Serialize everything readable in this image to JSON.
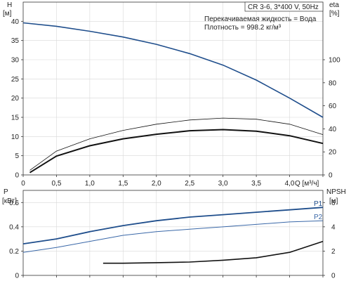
{
  "info_box": {
    "title": "CR 3-6, 3*400 V, 50Hz",
    "line1": "Перекачиваемая жидкость = Вода",
    "line2": "Плотность = 998.2 кг/м³"
  },
  "colors": {
    "head": "#1f4e8c",
    "p1": "#1f4e8c",
    "p2": "#3a68a8",
    "npsh": "#111111",
    "eta": "#111111",
    "grid": "#d8d8d8"
  },
  "chart_data": [
    {
      "type": "line",
      "panel": "head-efficiency",
      "x_label": "Q [м³/ч]",
      "xlim": [
        0,
        4.5
      ],
      "x_ticks": [
        "0",
        "0,5",
        "1,0",
        "1,5",
        "2,0",
        "2,5",
        "3,0",
        "3,5",
        "4,0",
        "Q [м³/ч]"
      ],
      "grid": true,
      "left_axis": {
        "label_top": "H",
        "label_unit": "[м]",
        "ylim": [
          0,
          45
        ],
        "ticks": [
          "0",
          "5",
          "10",
          "15",
          "20",
          "25",
          "30",
          "35",
          "40"
        ]
      },
      "right_axis": {
        "label_top": "eta",
        "label_unit": "[%]",
        "ylim": [
          0,
          150
        ],
        "ticks": [
          "0",
          "20",
          "40",
          "60",
          "80",
          "100"
        ]
      },
      "series": [
        {
          "axis": "left",
          "style": "head",
          "x": [
            0,
            0.5,
            1.0,
            1.5,
            2.0,
            2.5,
            3.0,
            3.5,
            4.0,
            4.5
          ],
          "y": [
            39.6,
            38.7,
            37.4,
            35.9,
            34.0,
            31.6,
            28.6,
            24.7,
            20.0,
            15.0
          ]
        },
        {
          "axis": "left",
          "style": "thin",
          "x": [
            0.1,
            0.5,
            1.0,
            1.5,
            2.0,
            2.5,
            3.0,
            3.5,
            4.0,
            4.5
          ],
          "y": [
            1.2,
            6.2,
            9.4,
            11.6,
            13.2,
            14.3,
            14.8,
            14.5,
            13.2,
            10.5
          ]
        },
        {
          "axis": "left",
          "style": "thick",
          "x": [
            0.1,
            0.5,
            1.0,
            1.5,
            2.0,
            2.5,
            3.0,
            3.5,
            4.0,
            4.5
          ],
          "y": [
            0.6,
            4.9,
            7.6,
            9.4,
            10.6,
            11.5,
            11.8,
            11.4,
            10.2,
            8.2
          ]
        }
      ]
    },
    {
      "type": "line",
      "panel": "power-npsh",
      "xlim": [
        0,
        4.5
      ],
      "grid": true,
      "left_axis": {
        "label_top": "P",
        "label_unit": "[кВт]",
        "ylim": [
          0,
          0.7
        ],
        "ticks": [
          "0",
          "0.2",
          "0.4",
          "0.6"
        ]
      },
      "right_axis": {
        "label_top": "NPSH",
        "label_unit": "[м]",
        "ylim": [
          0,
          7
        ],
        "ticks": [
          "0",
          "2",
          "4",
          "6"
        ]
      },
      "series": [
        {
          "name": "P1",
          "axis": "left",
          "style": "p1",
          "x": [
            0,
            0.5,
            1.0,
            1.5,
            2.0,
            2.5,
            3.0,
            3.5,
            4.0,
            4.5
          ],
          "y": [
            0.26,
            0.3,
            0.36,
            0.41,
            0.45,
            0.48,
            0.5,
            0.52,
            0.54,
            0.56
          ]
        },
        {
          "name": "P2",
          "axis": "left",
          "style": "p2",
          "x": [
            0,
            0.5,
            1.0,
            1.5,
            2.0,
            2.5,
            3.0,
            3.5,
            4.0,
            4.5
          ],
          "y": [
            0.19,
            0.23,
            0.28,
            0.33,
            0.36,
            0.38,
            0.4,
            0.42,
            0.44,
            0.45
          ]
        },
        {
          "axis": "right",
          "style": "npsh",
          "x": [
            1.2,
            1.5,
            2.0,
            2.5,
            3.0,
            3.5,
            4.0,
            4.5
          ],
          "y": [
            1.0,
            1.0,
            1.05,
            1.1,
            1.25,
            1.45,
            1.9,
            2.8
          ]
        }
      ]
    }
  ]
}
